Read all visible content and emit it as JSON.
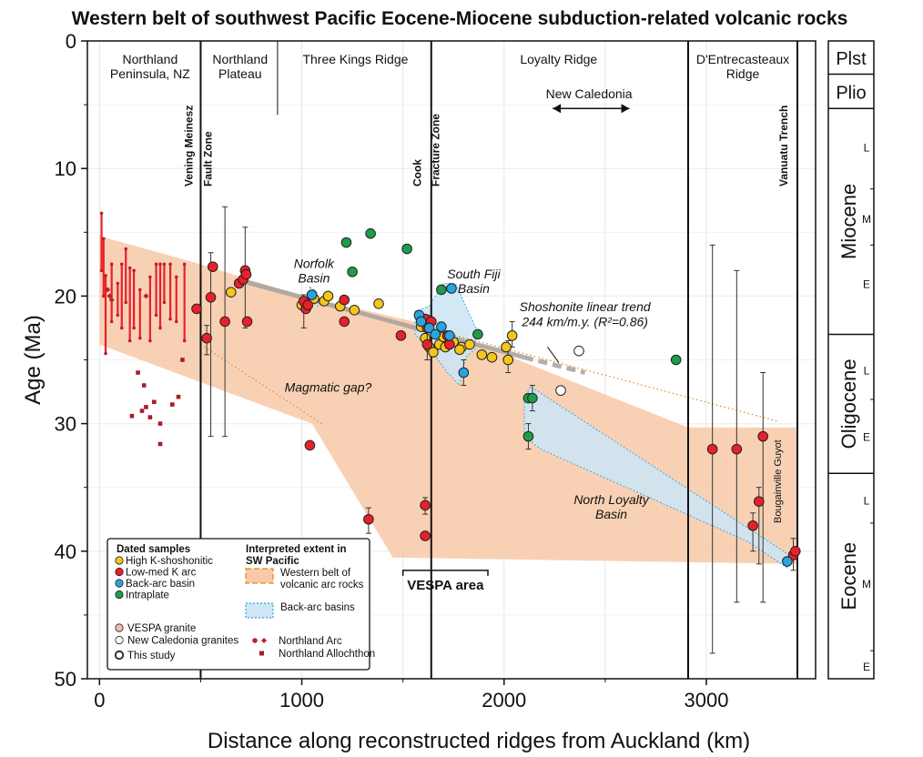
{
  "chart_data": {
    "type": "scatter",
    "title": "Western belt of southwest Pacific Eocene-Miocene subduction-related volcanic rocks",
    "xlabel": "Distance along reconstructed ridges from Auckland (km)",
    "ylabel": "Age (Ma)",
    "xlim": [
      -60,
      3540
    ],
    "ylim": [
      0,
      50
    ],
    "y_inverted": true,
    "grid": true,
    "xticks": [
      0,
      1000,
      2000,
      3000
    ],
    "yticks": [
      0,
      10,
      20,
      30,
      40,
      50
    ],
    "boundaries_km": [
      500,
      1640,
      2910,
      3450
    ],
    "regions": [
      {
        "name": "Northland\nPeninsula, NZ",
        "x": 250
      },
      {
        "name": "Northland\nPlateau",
        "x": 695
      },
      {
        "name": "Three Kings Ridge",
        "x": 1265
      },
      {
        "name": "Loyalty Ridge",
        "x": 2270
      },
      {
        "name": "D'Entrecasteaux\nRidge",
        "x": 3180
      }
    ],
    "vertical_labels": [
      {
        "text": "Vening Meinesz",
        "x": 460
      },
      {
        "text": "Fault Zone",
        "x": 555
      },
      {
        "text": "Cook",
        "x": 1590
      },
      {
        "text": "Fracture Zone",
        "x": 1680
      },
      {
        "text": "Vanuatu Trench",
        "x": 3400
      },
      {
        "text": "Bougainville Guyot",
        "x": 3370
      }
    ],
    "annotations": [
      {
        "text": "Norfolk\nBasin",
        "x": 1060,
        "y": 17.8,
        "color": "#1f8fcf"
      },
      {
        "text": "South Fiji\nBasin",
        "x": 1850,
        "y": 18.6,
        "color": "#1f8fcf"
      },
      {
        "text": "Magmatic gap?",
        "x": 1130,
        "y": 27.5,
        "color": "#e08a1c"
      },
      {
        "text": "Shoshonite linear trend\n244 km/m.y. (R²=0.86)",
        "x": 2400,
        "y": 21.2,
        "color": "#8a7a70"
      },
      {
        "text": "New Caledonia",
        "x": 2420,
        "y": 4.5,
        "color": "#111"
      },
      {
        "text": "North Loyalty\nBasin",
        "x": 2530,
        "y": 36.3,
        "color": "#1f8fcf"
      },
      {
        "text": "VESPA area",
        "x": 1710,
        "y": 43.0,
        "color": "#111"
      }
    ],
    "timescale": [
      {
        "label": "Plst",
        "from": 0,
        "to": 2.6
      },
      {
        "label": "Plio",
        "from": 2.6,
        "to": 5.3
      },
      {
        "label": "Miocene",
        "from": 5.3,
        "to": 23.0,
        "subs": [
          {
            "label": "L",
            "at": 8.3
          },
          {
            "label": "M",
            "at": 13.9
          },
          {
            "label": "E",
            "at": 19.0
          }
        ]
      },
      {
        "label": "Oligocene",
        "from": 23.0,
        "to": 33.9,
        "subs": [
          {
            "label": "L",
            "at": 25.8
          },
          {
            "label": "E",
            "at": 31.0
          }
        ]
      },
      {
        "label": "Eocene",
        "from": 33.9,
        "to": 50,
        "subs": [
          {
            "label": "L",
            "at": 36.0
          },
          {
            "label": "M",
            "at": 42.5
          },
          {
            "label": "E",
            "at": 49.0
          }
        ]
      }
    ],
    "timescale_ticks": [
      11.6,
      16.0,
      28.1,
      37.8,
      47.8
    ],
    "series": [
      {
        "name": "High K-shoshonitic",
        "color": "#f5c518",
        "points": [
          [
            650,
            19.7
          ],
          [
            1000,
            20.7
          ],
          [
            1020,
            20.5
          ],
          [
            1060,
            20.2
          ],
          [
            1110,
            20.4
          ],
          [
            1130,
            20.0
          ],
          [
            1190,
            20.8
          ],
          [
            1260,
            21.1
          ],
          [
            1380,
            20.6
          ],
          [
            1590,
            22.4
          ],
          [
            1610,
            23.3
          ],
          [
            1630,
            24.0
          ],
          [
            1650,
            24.4
          ],
          [
            1680,
            23.8
          ],
          [
            1710,
            24.0
          ],
          [
            1750,
            23.6
          ],
          [
            1790,
            24.0
          ],
          [
            1830,
            23.8
          ],
          [
            1890,
            24.6
          ],
          [
            1940,
            24.8
          ],
          [
            2010,
            24.0
          ],
          [
            2020,
            25.0
          ],
          [
            2040,
            23.1
          ],
          [
            1780,
            24.2
          ],
          [
            1700,
            23.2
          ]
        ],
        "error_bars": [
          [
            2040,
            22.0,
            24.0
          ],
          [
            2020,
            23.5,
            26.0
          ]
        ]
      },
      {
        "name": "Low-med K arc",
        "color": "#e8202a",
        "points": [
          [
            480,
            21.0
          ],
          [
            530,
            23.3
          ],
          [
            550,
            20.1
          ],
          [
            560,
            17.7
          ],
          [
            620,
            22.0
          ],
          [
            690,
            19.0
          ],
          [
            710,
            18.7
          ],
          [
            720,
            18.0
          ],
          [
            725,
            18.3
          ],
          [
            730,
            22.0
          ],
          [
            1010,
            20.4
          ],
          [
            1020,
            21.0
          ],
          [
            1030,
            20.7
          ],
          [
            1210,
            20.3
          ],
          [
            1210,
            22.0
          ],
          [
            1490,
            23.1
          ],
          [
            1610,
            21.8
          ],
          [
            1620,
            22.5
          ],
          [
            1640,
            22.0
          ],
          [
            1620,
            23.8
          ],
          [
            1720,
            23.1
          ],
          [
            1730,
            23.8
          ],
          [
            1040,
            31.7
          ],
          [
            1330,
            37.5
          ],
          [
            1610,
            36.4
          ],
          [
            1610,
            38.8
          ],
          [
            3030,
            32.0
          ],
          [
            3150,
            32.0
          ],
          [
            3230,
            38.0
          ],
          [
            3260,
            36.1
          ],
          [
            3280,
            31.0
          ],
          [
            3430,
            40.3
          ],
          [
            3440,
            40.0
          ]
        ],
        "error_bars": [
          [
            530,
            22.3,
            24.6
          ],
          [
            550,
            16.6,
            31.0
          ],
          [
            620,
            13.0,
            31.0
          ],
          [
            720,
            14.6,
            22.5
          ],
          [
            1010,
            19.9,
            22.5
          ],
          [
            1330,
            36.6,
            38.6
          ],
          [
            1610,
            35.8,
            37.1
          ],
          [
            1620,
            21.5,
            25.0
          ],
          [
            3030,
            16.0,
            48.0
          ],
          [
            3150,
            18.0,
            44.0
          ],
          [
            3230,
            37.0,
            40.0
          ],
          [
            3260,
            35.0,
            41.0
          ],
          [
            3280,
            26.0,
            44.0
          ],
          [
            3430,
            39.0,
            41.5
          ]
        ]
      },
      {
        "name": "Back-arc basin",
        "color": "#2aa4df",
        "points": [
          [
            1050,
            19.9
          ],
          [
            1580,
            21.5
          ],
          [
            1590,
            22.0
          ],
          [
            1630,
            22.5
          ],
          [
            1660,
            23.0
          ],
          [
            1690,
            22.4
          ],
          [
            1740,
            19.4
          ],
          [
            1800,
            26.0
          ],
          [
            1730,
            23.1
          ],
          [
            3400,
            40.8
          ]
        ],
        "error_bars": [
          [
            1800,
            25.0,
            27.0
          ]
        ]
      },
      {
        "name": "Intraplate",
        "color": "#1e9c4a",
        "points": [
          [
            1220,
            15.8
          ],
          [
            1250,
            18.1
          ],
          [
            1340,
            15.1
          ],
          [
            1520,
            16.3
          ],
          [
            1690,
            19.5
          ],
          [
            1870,
            23.0
          ],
          [
            2120,
            28.0
          ],
          [
            2140,
            28.0
          ],
          [
            2120,
            31.0
          ],
          [
            2850,
            25.0
          ]
        ],
        "error_bars": [
          [
            2120,
            30.0,
            32.0
          ],
          [
            2140,
            27.0,
            29.0
          ]
        ]
      },
      {
        "name": "New Caledonia granites",
        "color": "#ffffff",
        "points": [
          [
            2280,
            27.4
          ],
          [
            2370,
            24.3
          ]
        ]
      }
    ],
    "northland_arc": {
      "name": "Northland Arc",
      "color": "#c0202a",
      "ranges": [
        [
          10,
          13.5,
          18.0
        ],
        [
          20,
          15.5,
          20.0
        ],
        [
          30,
          18.4,
          24.5
        ],
        [
          60,
          17.5,
          22.0
        ],
        [
          90,
          19.0,
          21.5
        ],
        [
          110,
          17.5,
          22.5
        ],
        [
          130,
          16.3,
          20.5
        ],
        [
          150,
          17.8,
          23.5
        ],
        [
          170,
          18.0,
          22.5
        ],
        [
          200,
          19.5,
          23.3
        ],
        [
          250,
          18.5,
          23.5
        ],
        [
          280,
          17.5,
          21.5
        ],
        [
          300,
          17.5,
          22.5
        ],
        [
          320,
          17.5,
          20.5
        ],
        [
          350,
          17.5,
          21.8
        ],
        [
          380,
          18.5,
          22.0
        ],
        [
          420,
          17.5,
          23.5
        ]
      ],
      "diamonds": [
        [
          40,
          19.5
        ],
        [
          50,
          20.0
        ],
        [
          60,
          20.3
        ],
        [
          230,
          20.0
        ]
      ]
    },
    "northland_allochthon": {
      "name": "Northland Allochthon",
      "color": "#a81c28",
      "points": [
        [
          190,
          26.0
        ],
        [
          220,
          27.0
        ],
        [
          230,
          28.7
        ],
        [
          250,
          29.5
        ],
        [
          270,
          28.3
        ],
        [
          300,
          30.0
        ],
        [
          300,
          31.6
        ],
        [
          360,
          28.5
        ],
        [
          390,
          27.9
        ],
        [
          410,
          25.0
        ],
        [
          160,
          29.4
        ],
        [
          210,
          29.0
        ]
      ]
    },
    "western_belt": {
      "name": "Western belt of volcanic arc rocks",
      "color": "#f7c9a8",
      "upper": [
        [
          0,
          15.3
        ],
        [
          500,
          17.5
        ],
        [
          1000,
          20.0
        ],
        [
          1640,
          22.3
        ],
        [
          2910,
          30.3
        ],
        [
          3450,
          30.3
        ]
      ],
      "lower": [
        [
          3450,
          41.0
        ],
        [
          1450,
          40.5
        ],
        [
          1050,
          30.0
        ],
        [
          0,
          23.8
        ]
      ]
    },
    "back_arc_basins": {
      "name": "Back-arc basins",
      "color": "#cfe6f5",
      "south_fiji": [
        [
          1560,
          21.2
        ],
        [
          1630,
          20.8
        ],
        [
          1700,
          19.0
        ],
        [
          1760,
          19.0
        ],
        [
          1860,
          22.5
        ],
        [
          1860,
          24.1
        ],
        [
          1810,
          24.8
        ],
        [
          1780,
          27.0
        ],
        [
          1720,
          26.0
        ],
        [
          1650,
          24.5
        ],
        [
          1560,
          23.0
        ]
      ],
      "norfolk": [
        [
          1040,
          19.3
        ],
        [
          1070,
          19.6
        ],
        [
          1080,
          20.8
        ],
        [
          1050,
          20.5
        ]
      ],
      "north_loyalty": [
        [
          2100,
          28.0
        ],
        [
          2130,
          27.1
        ],
        [
          2180,
          27.6
        ],
        [
          3430,
          40.5
        ],
        [
          3400,
          41.3
        ],
        [
          3200,
          39.2
        ],
        [
          2180,
          32.0
        ],
        [
          2100,
          31.0
        ]
      ]
    },
    "trend_line": {
      "name": "Shoshonite linear trend",
      "from": [
        700,
        18.8
      ],
      "to": [
        2100,
        24.8
      ],
      "dashed_to": [
        2400,
        26.0
      ]
    },
    "dotted_lines": [
      {
        "from": [
          500,
          23.8
        ],
        "to": [
          1100,
          30.0
        ]
      },
      {
        "from": [
          1600,
          22.4
        ],
        "to": [
          3350,
          29.8
        ]
      }
    ],
    "legend": {
      "position": "bottom-left",
      "title_samples": "Dated samples",
      "title_extent": "Interpreted extent in\nSW Pacific",
      "items": [
        {
          "label": "High K-shoshonitic",
          "color": "#f5c518"
        },
        {
          "label": "Low-med K arc",
          "color": "#e8202a"
        },
        {
          "label": "Back-arc basin",
          "color": "#2aa4df"
        },
        {
          "label": "Intraplate",
          "color": "#1e9c4a"
        }
      ],
      "extra": [
        {
          "label": "VESPA granite",
          "color": "#f3b8b5"
        },
        {
          "label": "New Caledonia granites",
          "color": "#ffffff"
        },
        {
          "label": "This study",
          "color": "#ffffff"
        }
      ],
      "extent_items": [
        {
          "label": "Western belt of\nvolcanic arc rocks",
          "color": "#f7c9a8"
        },
        {
          "label": "Back-arc basins",
          "color": "#cfe6f5"
        }
      ],
      "northland_items": [
        {
          "label": "Northland Arc"
        },
        {
          "label": "Northland Allochthon"
        }
      ]
    }
  }
}
